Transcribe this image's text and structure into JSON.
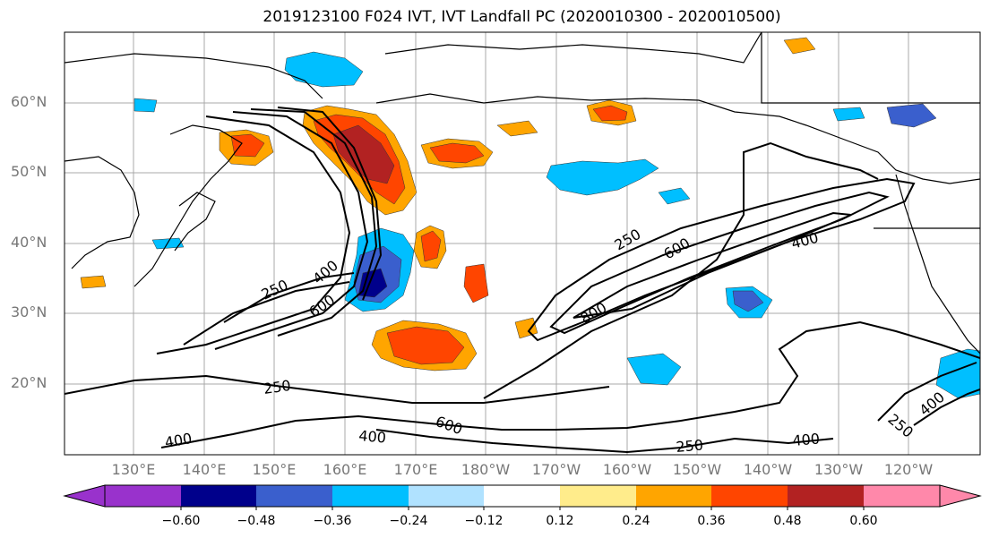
{
  "title": "2019123100 F024 IVT, IVT Landfall PC (2020010300 - 2020010500)",
  "map": {
    "lat_labels": [
      "60°N",
      "50°N",
      "40°N",
      "30°N",
      "20°N"
    ],
    "lon_labels": [
      "130°E",
      "140°E",
      "150°E",
      "160°E",
      "170°E",
      "180°W",
      "170°W",
      "160°W",
      "150°W",
      "140°W",
      "130°W",
      "120°W"
    ],
    "contour_labels": [
      "250",
      "400",
      "600",
      "250",
      "600",
      "800",
      "400",
      "250",
      "400",
      "600",
      "400",
      "250",
      "400",
      "400",
      "250"
    ]
  },
  "colorbar": {
    "tick_labels": [
      "−0.60",
      "−0.48",
      "−0.36",
      "−0.24",
      "−0.12",
      "0.12",
      "0.24",
      "0.36",
      "0.48",
      "0.60"
    ],
    "colors": [
      "#9932cc",
      "#00008b",
      "#3a5fcd",
      "#00bfff",
      "#b0e2ff",
      "#ffffff",
      "#ffec8b",
      "#ffa500",
      "#ff4500",
      "#b22222",
      "#ff88aa"
    ]
  }
}
